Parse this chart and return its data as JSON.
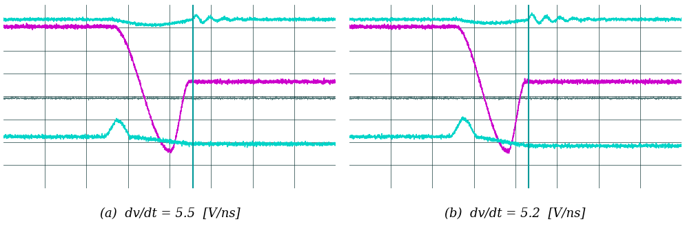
{
  "panel_a_label": "(a)  dv/dt = 5.5  [V/ns]",
  "panel_b_label": "(b)  dv/dt = 5.2  [V/ns]",
  "bg_color": "#050a0a",
  "outer_bg": "#ffffff",
  "cyan_color": "#00d4c8",
  "magenta_color": "#cc00cc",
  "grid_color": "#0d3535",
  "vline_color": "#009999",
  "label_fontsize": 13,
  "figsize": [
    9.94,
    3.42
  ],
  "dpi": 100
}
